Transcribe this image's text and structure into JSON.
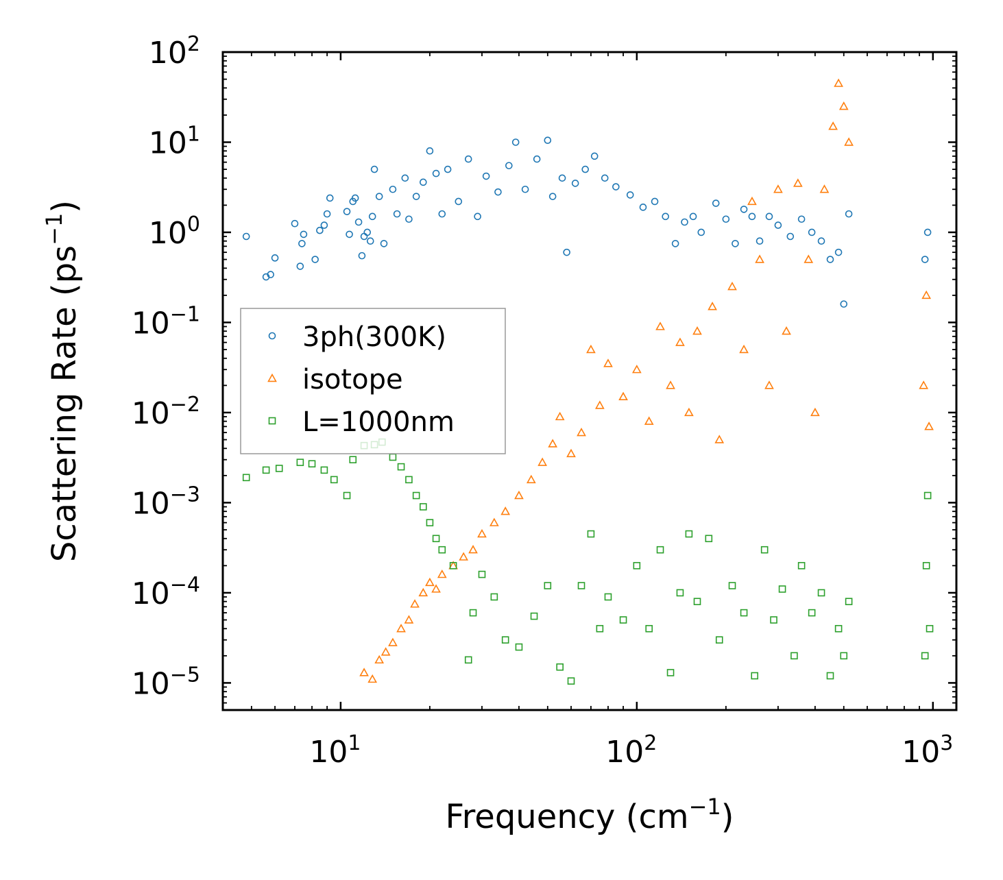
{
  "chart_data": {
    "type": "scatter",
    "title": "",
    "xlabel": "Frequency (cm",
    "xlabel_sup": "−1",
    "xlabel_end": ")",
    "ylabel": "Scattering Rate (ps",
    "ylabel_sup": "−1",
    "ylabel_end": ")",
    "xscale": "log",
    "yscale": "log",
    "xlim": [
      4,
      1200
    ],
    "ylim": [
      5e-06,
      100
    ],
    "xticks": [
      {
        "value": 10,
        "base": "10",
        "exp": "1"
      },
      {
        "value": 100,
        "base": "10",
        "exp": "2"
      },
      {
        "value": 1000,
        "base": "10",
        "exp": "3"
      }
    ],
    "yticks": [
      {
        "value": 100,
        "base": "10",
        "exp": "2"
      },
      {
        "value": 10,
        "base": "10",
        "exp": "1"
      },
      {
        "value": 1,
        "base": "10",
        "exp": "0"
      },
      {
        "value": 0.1,
        "base": "10",
        "exp": "−1"
      },
      {
        "value": 0.01,
        "base": "10",
        "exp": "−2"
      },
      {
        "value": 0.001,
        "base": "10",
        "exp": "−3"
      },
      {
        "value": 0.0001,
        "base": "10",
        "exp": "−4"
      },
      {
        "value": 1e-05,
        "base": "10",
        "exp": "−5"
      }
    ],
    "legend_position": "center-left",
    "series": [
      {
        "name": "3ph(300K)",
        "marker": "circle",
        "color": "#1f77b4",
        "values": [
          [
            4.8,
            0.9
          ],
          [
            5.6,
            0.32
          ],
          [
            5.8,
            0.34
          ],
          [
            6.0,
            0.52
          ],
          [
            7.0,
            1.25
          ],
          [
            7.3,
            0.42
          ],
          [
            7.4,
            0.75
          ],
          [
            7.5,
            0.95
          ],
          [
            8.2,
            0.5
          ],
          [
            8.5,
            1.05
          ],
          [
            8.8,
            1.2
          ],
          [
            9.0,
            1.6
          ],
          [
            9.2,
            2.4
          ],
          [
            10.5,
            1.7
          ],
          [
            10.7,
            0.95
          ],
          [
            11.0,
            2.2
          ],
          [
            11.2,
            2.4
          ],
          [
            11.5,
            1.3
          ],
          [
            11.8,
            0.55
          ],
          [
            12.0,
            0.9
          ],
          [
            12.3,
            1.0
          ],
          [
            12.6,
            0.8
          ],
          [
            12.8,
            1.5
          ],
          [
            13.0,
            5.0
          ],
          [
            13.5,
            2.5
          ],
          [
            14.0,
            0.75
          ],
          [
            15.0,
            3.0
          ],
          [
            15.5,
            1.6
          ],
          [
            16.5,
            4.0
          ],
          [
            17.0,
            1.4
          ],
          [
            18.0,
            2.5
          ],
          [
            19.0,
            3.6
          ],
          [
            20.0,
            8.0
          ],
          [
            21.0,
            4.5
          ],
          [
            22.0,
            1.6
          ],
          [
            23.0,
            5.0
          ],
          [
            25.0,
            2.2
          ],
          [
            27.0,
            6.5
          ],
          [
            29.0,
            1.5
          ],
          [
            31.0,
            4.2
          ],
          [
            34.0,
            2.8
          ],
          [
            37.0,
            5.5
          ],
          [
            39.0,
            10.0
          ],
          [
            42.0,
            3.0
          ],
          [
            46.0,
            6.5
          ],
          [
            50.0,
            10.5
          ],
          [
            52.0,
            2.5
          ],
          [
            56.0,
            4.0
          ],
          [
            58.0,
            0.6
          ],
          [
            62.0,
            3.5
          ],
          [
            67.0,
            5.0
          ],
          [
            72.0,
            7.0
          ],
          [
            78.0,
            4.0
          ],
          [
            85.0,
            3.2
          ],
          [
            95.0,
            2.6
          ],
          [
            105.0,
            1.9
          ],
          [
            115.0,
            2.2
          ],
          [
            125.0,
            1.5
          ],
          [
            135.0,
            0.75
          ],
          [
            145.0,
            1.3
          ],
          [
            155.0,
            1.5
          ],
          [
            165.0,
            1.0
          ],
          [
            185.0,
            2.1
          ],
          [
            200.0,
            1.4
          ],
          [
            215.0,
            0.75
          ],
          [
            230.0,
            1.8
          ],
          [
            245.0,
            1.5
          ],
          [
            260.0,
            0.8
          ],
          [
            280.0,
            1.5
          ],
          [
            300.0,
            1.2
          ],
          [
            330.0,
            0.9
          ],
          [
            360.0,
            1.4
          ],
          [
            390.0,
            1.0
          ],
          [
            420.0,
            0.8
          ],
          [
            450.0,
            0.5
          ],
          [
            480.0,
            0.6
          ],
          [
            500.0,
            0.16
          ],
          [
            520.0,
            1.6
          ],
          [
            940.0,
            0.5
          ],
          [
            960.0,
            1.0
          ]
        ]
      },
      {
        "name": "isotope",
        "marker": "triangle",
        "color": "#ff7f0e",
        "values": [
          [
            12.0,
            1.3e-05
          ],
          [
            12.8,
            1.1e-05
          ],
          [
            13.5,
            1.8e-05
          ],
          [
            14.2,
            2.2e-05
          ],
          [
            15.0,
            2.8e-05
          ],
          [
            16.0,
            4e-05
          ],
          [
            17.0,
            5e-05
          ],
          [
            17.8,
            7.5e-05
          ],
          [
            19.0,
            0.0001
          ],
          [
            20.0,
            0.00013
          ],
          [
            21.0,
            0.00011
          ],
          [
            22.0,
            0.00016
          ],
          [
            24.0,
            0.0002
          ],
          [
            26.0,
            0.00025
          ],
          [
            28.0,
            0.0003
          ],
          [
            30.0,
            0.00045
          ],
          [
            33.0,
            0.0006
          ],
          [
            36.0,
            0.0008
          ],
          [
            40.0,
            0.0012
          ],
          [
            44.0,
            0.0018
          ],
          [
            48.0,
            0.0028
          ],
          [
            52.0,
            0.0045
          ],
          [
            55.0,
            0.009
          ],
          [
            60.0,
            0.0035
          ],
          [
            65.0,
            0.006
          ],
          [
            70.0,
            0.05
          ],
          [
            75.0,
            0.012
          ],
          [
            80.0,
            0.035
          ],
          [
            90.0,
            0.015
          ],
          [
            100.0,
            0.03
          ],
          [
            110.0,
            0.008
          ],
          [
            120.0,
            0.09
          ],
          [
            130.0,
            0.02
          ],
          [
            140.0,
            0.06
          ],
          [
            150.0,
            0.01
          ],
          [
            160.0,
            0.08
          ],
          [
            180.0,
            0.15
          ],
          [
            190.0,
            0.005
          ],
          [
            210.0,
            0.25
          ],
          [
            230.0,
            0.05
          ],
          [
            245.0,
            2.2
          ],
          [
            260.0,
            0.5
          ],
          [
            280.0,
            0.02
          ],
          [
            300.0,
            3.0
          ],
          [
            320.0,
            0.08
          ],
          [
            350.0,
            3.5
          ],
          [
            380.0,
            0.5
          ],
          [
            400.0,
            0.01
          ],
          [
            430.0,
            3.0
          ],
          [
            460.0,
            15.0
          ],
          [
            480.0,
            45.0
          ],
          [
            500.0,
            25.0
          ],
          [
            520.0,
            10.0
          ],
          [
            930.0,
            0.02
          ],
          [
            950.0,
            0.2
          ],
          [
            970.0,
            0.007
          ]
        ]
      },
      {
        "name": "L=1000nm",
        "marker": "square",
        "color": "#2ca02c",
        "values": [
          [
            4.8,
            0.0019
          ],
          [
            5.6,
            0.0023
          ],
          [
            6.2,
            0.0024
          ],
          [
            7.3,
            0.0028
          ],
          [
            8.0,
            0.0027
          ],
          [
            8.8,
            0.0023
          ],
          [
            9.5,
            0.0018
          ],
          [
            10.5,
            0.0012
          ],
          [
            11.0,
            0.003
          ],
          [
            12.0,
            0.0043
          ],
          [
            13.0,
            0.0044
          ],
          [
            13.8,
            0.0047
          ],
          [
            15.0,
            0.0032
          ],
          [
            16.0,
            0.0025
          ],
          [
            17.0,
            0.0018
          ],
          [
            18.0,
            0.0012
          ],
          [
            19.0,
            0.0009
          ],
          [
            20.0,
            0.0006
          ],
          [
            21.0,
            0.0004
          ],
          [
            22.0,
            0.0003
          ],
          [
            24.0,
            0.0002
          ],
          [
            27.0,
            1.8e-05
          ],
          [
            28.0,
            6e-05
          ],
          [
            30.0,
            0.00016
          ],
          [
            33.0,
            9e-05
          ],
          [
            36.0,
            3e-05
          ],
          [
            40.0,
            2.5e-05
          ],
          [
            45.0,
            5.5e-05
          ],
          [
            50.0,
            0.00012
          ],
          [
            55.0,
            1.5e-05
          ],
          [
            60.0,
            1.05e-05
          ],
          [
            65.0,
            0.00012
          ],
          [
            70.0,
            0.00045
          ],
          [
            75.0,
            4e-05
          ],
          [
            80.0,
            9e-05
          ],
          [
            90.0,
            5e-05
          ],
          [
            100.0,
            0.0002
          ],
          [
            110.0,
            4e-05
          ],
          [
            120.0,
            0.0003
          ],
          [
            130.0,
            1.3e-05
          ],
          [
            140.0,
            0.0001
          ],
          [
            150.0,
            0.00045
          ],
          [
            160.0,
            8e-05
          ],
          [
            175.0,
            0.0004
          ],
          [
            190.0,
            3e-05
          ],
          [
            210.0,
            0.00012
          ],
          [
            230.0,
            6e-05
          ],
          [
            250.0,
            1.2e-05
          ],
          [
            270.0,
            0.0003
          ],
          [
            290.0,
            5e-05
          ],
          [
            310.0,
            0.00011
          ],
          [
            340.0,
            2e-05
          ],
          [
            360.0,
            0.0002
          ],
          [
            390.0,
            6e-05
          ],
          [
            420.0,
            0.0001
          ],
          [
            450.0,
            1.2e-05
          ],
          [
            480.0,
            4e-05
          ],
          [
            500.0,
            2e-05
          ],
          [
            520.0,
            8e-05
          ],
          [
            940.0,
            2e-05
          ],
          [
            950.0,
            0.0002
          ],
          [
            960.0,
            0.0012
          ],
          [
            975.0,
            4e-05
          ]
        ]
      }
    ]
  }
}
